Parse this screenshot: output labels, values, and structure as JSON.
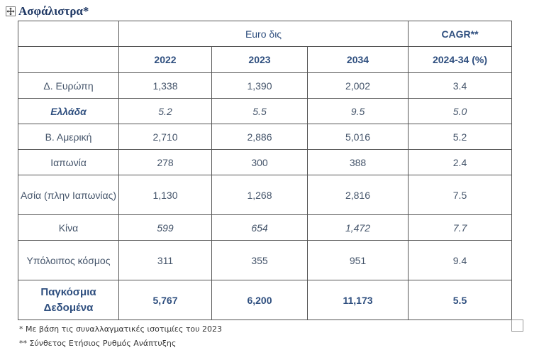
{
  "title": "Ασφάλιστρα*",
  "header": {
    "group_label": "Euro δις",
    "cagr_label": "CAGR**",
    "years": [
      "2022",
      "2023",
      "2034"
    ],
    "cagr_sub": "2024-34 (%)"
  },
  "rows": [
    {
      "label": "Δ. Ευρώπη",
      "v2022": "1,338",
      "v2023": "1,390",
      "v2034": "2,002",
      "cagr": "3.4"
    },
    {
      "label": "Ελλάδα",
      "v2022": "5.2",
      "v2023": "5.5",
      "v2034": "9.5",
      "cagr": "5.0"
    },
    {
      "label": "Β. Αμερική",
      "v2022": "2,710",
      "v2023": "2,886",
      "v2034": "5,016",
      "cagr": "5.2"
    },
    {
      "label": "Ιαπωνία",
      "v2022": "278",
      "v2023": "300",
      "v2034": "388",
      "cagr": "2.4"
    },
    {
      "label": "Ασία (πλην Ιαπωνίας)",
      "v2022": "1,130",
      "v2023": "1,268",
      "v2034": "2,816",
      "cagr": "7.5"
    },
    {
      "label": "Κίνα",
      "v2022": "599",
      "v2023": "654",
      "v2034": "1,472",
      "cagr": "7.7"
    },
    {
      "label": "Υπόλοιπος κόσμος",
      "v2022": "311",
      "v2023": "355",
      "v2034": "951",
      "cagr": "9.4"
    },
    {
      "label": "Παγκόσμια Δεδομένα",
      "v2022": "5,767",
      "v2023": "6,200",
      "v2034": "11,173",
      "cagr": "5.5"
    }
  ],
  "notes": [
    "* Με βάση τις συναλλαγματικές ισοτιμίες του 2023",
    "** Σύνθετος Ετήσιος Ρυθμός Ανάπτυξης"
  ]
}
